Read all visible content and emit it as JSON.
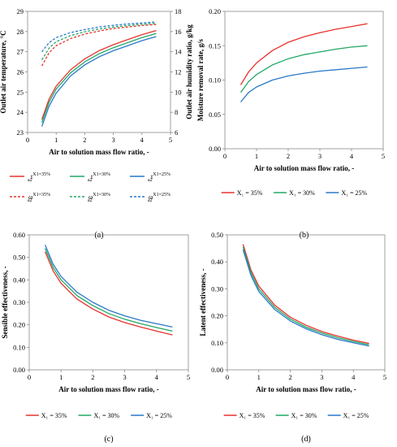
{
  "chart_data": [
    {
      "type": "line",
      "panel": "a",
      "caption": "(a)",
      "xlabel": "Air to solution mass flow ratio, -",
      "ylabel": "Outlet air temperature, °C",
      "y2label": "Outlet air humidity ratio, g/kg",
      "xlim": [
        0,
        5
      ],
      "ylim": [
        23,
        29
      ],
      "y2lim": [
        6,
        18
      ],
      "xticks": [
        "0",
        "1",
        "2",
        "3",
        "4",
        "5"
      ],
      "yticks": [
        "23",
        "24",
        "25",
        "26",
        "27",
        "28",
        "29"
      ],
      "y2ticks": [
        "6",
        "8",
        "10",
        "12",
        "14",
        "16",
        "18"
      ],
      "x": [
        0.5,
        0.75,
        1.0,
        1.5,
        2.0,
        2.5,
        3.0,
        3.5,
        4.0,
        4.5
      ],
      "series": [
        {
          "name": "t_a2^{X1=35%}",
          "axis": "left",
          "style": "solid",
          "color": "#e8332f",
          "values": [
            23.65,
            24.65,
            25.3,
            26.1,
            26.65,
            27.05,
            27.35,
            27.6,
            27.85,
            28.05
          ]
        },
        {
          "name": "t_a2^{X1=30%}",
          "axis": "left",
          "style": "solid",
          "color": "#22a866",
          "values": [
            23.5,
            24.5,
            25.15,
            25.95,
            26.5,
            26.9,
            27.2,
            27.45,
            27.7,
            27.9
          ]
        },
        {
          "name": "t_a2^{X1=25%}",
          "axis": "left",
          "style": "solid",
          "color": "#2979c8",
          "values": [
            23.3,
            24.3,
            24.95,
            25.8,
            26.35,
            26.75,
            27.05,
            27.3,
            27.55,
            27.75
          ]
        },
        {
          "name": "ω_a2^{X1=35%}",
          "axis": "right",
          "style": "dashed",
          "color": "#e8332f",
          "values": [
            12.6,
            13.9,
            14.6,
            15.3,
            15.75,
            16.05,
            16.3,
            16.45,
            16.6,
            16.7
          ]
        },
        {
          "name": "ω_a2^{X1=30%}",
          "axis": "right",
          "style": "dashed",
          "color": "#22a866",
          "values": [
            13.2,
            14.35,
            15.0,
            15.6,
            15.98,
            16.25,
            16.45,
            16.6,
            16.72,
            16.82
          ]
        },
        {
          "name": "ω_a2^{X1=25%}",
          "axis": "right",
          "style": "dashed",
          "color": "#2979c8",
          "values": [
            14.0,
            14.9,
            15.4,
            15.9,
            16.2,
            16.45,
            16.62,
            16.75,
            16.85,
            16.95
          ]
        }
      ],
      "legend_sub": [
        "X1=35%",
        "X1=30%",
        "X1=25%"
      ]
    },
    {
      "type": "line",
      "panel": "b",
      "caption": "(b)",
      "xlabel": "Air to solution mass flow ratio, -",
      "ylabel": "Moisture removal rate, g/s",
      "xlim": [
        0,
        5
      ],
      "ylim": [
        0,
        0.2
      ],
      "xticks": [
        "0",
        "1",
        "2",
        "3",
        "4",
        "5"
      ],
      "yticks": [
        "0.00",
        "0.05",
        "0.10",
        "0.15",
        "0.20"
      ],
      "x": [
        0.5,
        0.75,
        1.0,
        1.5,
        2.0,
        2.5,
        3.0,
        3.5,
        4.0,
        4.5
      ],
      "series": [
        {
          "name": "X1 = 35%",
          "color": "#e8332f",
          "values": [
            0.093,
            0.112,
            0.125,
            0.143,
            0.155,
            0.163,
            0.169,
            0.174,
            0.178,
            0.182
          ]
        },
        {
          "name": "X1 = 30%",
          "color": "#22a866",
          "values": [
            0.082,
            0.098,
            0.108,
            0.122,
            0.131,
            0.137,
            0.141,
            0.145,
            0.148,
            0.15
          ]
        },
        {
          "name": "X1 = 25%",
          "color": "#2979c8",
          "values": [
            0.068,
            0.082,
            0.09,
            0.1,
            0.106,
            0.11,
            0.113,
            0.115,
            0.117,
            0.119
          ]
        }
      ],
      "legend": [
        "X₁ = 35%",
        "X₁ = 30%",
        "X₁ = 25%"
      ]
    },
    {
      "type": "line",
      "panel": "c",
      "caption": "(c)",
      "xlabel": "Air to solution mass flow ratio, -",
      "ylabel": "Sensible effectiveness, -",
      "xlim": [
        0,
        5
      ],
      "ylim": [
        0,
        0.6
      ],
      "xticks": [
        "0",
        "1",
        "2",
        "3",
        "4",
        "5"
      ],
      "yticks": [
        "0.00",
        "0.10",
        "0.20",
        "0.30",
        "0.40",
        "0.50",
        "0.60"
      ],
      "x": [
        0.5,
        0.75,
        1.0,
        1.5,
        2.0,
        2.5,
        3.0,
        3.5,
        4.0,
        4.5
      ],
      "series": [
        {
          "name": "X1 = 35%",
          "color": "#e8332f",
          "values": [
            0.525,
            0.44,
            0.385,
            0.315,
            0.27,
            0.235,
            0.21,
            0.19,
            0.172,
            0.155
          ]
        },
        {
          "name": "X1 = 30%",
          "color": "#22a866",
          "values": [
            0.54,
            0.455,
            0.4,
            0.33,
            0.285,
            0.25,
            0.225,
            0.205,
            0.188,
            0.172
          ]
        },
        {
          "name": "X1 = 25%",
          "color": "#2979c8",
          "values": [
            0.555,
            0.47,
            0.415,
            0.345,
            0.3,
            0.265,
            0.24,
            0.22,
            0.205,
            0.19
          ]
        }
      ],
      "legend": [
        "X₁ = 35%",
        "X₁ = 30%",
        "X₁ = 25%"
      ]
    },
    {
      "type": "line",
      "panel": "d",
      "caption": "(d)",
      "xlabel": "Air to solution mass flow ratio, -",
      "ylabel": "Latent effectiveness, -",
      "xlim": [
        0,
        5
      ],
      "ylim": [
        0,
        0.5
      ],
      "xticks": [
        "0",
        "1",
        "2",
        "3",
        "4",
        "5"
      ],
      "yticks": [
        "0.00",
        "0.10",
        "0.20",
        "0.30",
        "0.40",
        "0.50"
      ],
      "x": [
        0.5,
        0.75,
        1.0,
        1.5,
        2.0,
        2.5,
        3.0,
        3.5,
        4.0,
        4.5
      ],
      "series": [
        {
          "name": "X1 = 35%",
          "color": "#e8332f",
          "values": [
            0.465,
            0.37,
            0.31,
            0.24,
            0.195,
            0.165,
            0.142,
            0.125,
            0.11,
            0.098
          ]
        },
        {
          "name": "X1 = 30%",
          "color": "#22a866",
          "values": [
            0.455,
            0.36,
            0.3,
            0.232,
            0.188,
            0.158,
            0.136,
            0.119,
            0.105,
            0.093
          ]
        },
        {
          "name": "X1 = 25%",
          "color": "#2979c8",
          "values": [
            0.445,
            0.35,
            0.29,
            0.224,
            0.181,
            0.152,
            0.13,
            0.113,
            0.1,
            0.088
          ]
        }
      ],
      "legend": [
        "X₁ = 35%",
        "X₁ = 30%",
        "X₁ = 25%"
      ]
    }
  ]
}
